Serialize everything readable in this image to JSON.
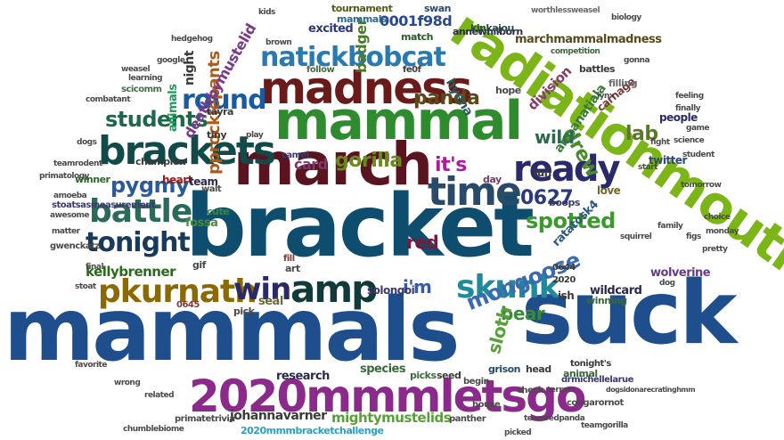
{
  "cloud": {
    "words": [
      {
        "text": "mammals",
        "color": "#1f4e8c"
      },
      {
        "text": "suck",
        "color": "#1f4e8c"
      },
      {
        "text": "bracket",
        "color": "#0e4d6e"
      },
      {
        "text": "march",
        "color": "#5a1420"
      },
      {
        "text": "mammal",
        "color": "#2e8b2e"
      },
      {
        "text": "madness",
        "color": "#6b1a1a"
      },
      {
        "text": "radiationmouth",
        "color": "#7cb518"
      },
      {
        "text": "2020mmmletsgo",
        "color": "#8b2a8b"
      },
      {
        "text": "brackets",
        "color": "#124a4a"
      },
      {
        "text": "time",
        "color": "#2a4a6a"
      },
      {
        "text": "ready",
        "color": "#2a2a6a"
      },
      {
        "text": "amp",
        "color": "#123a3a"
      },
      {
        "text": "skunk",
        "color": "#1e8a9a"
      },
      {
        "text": "natickbobcat",
        "color": "#2a7ab0"
      },
      {
        "text": "battle",
        "color": "#2a6a5a"
      },
      {
        "text": "tonight",
        "color": "#1a3a5a"
      },
      {
        "text": "pkurnath",
        "color": "#8a6a00"
      },
      {
        "text": "win",
        "color": "#2a2a6a"
      },
      {
        "text": "round",
        "color": "#1a5aa0"
      },
      {
        "text": "students",
        "color": "#1a6a4a"
      },
      {
        "text": "pygmy",
        "color": "#2a5a9a"
      },
      {
        "text": "gorilla",
        "color": "#6a8a1a"
      },
      {
        "text": "spotted",
        "color": "#3a9a2a"
      },
      {
        "text": "mongoose",
        "color": "#3a6ab0"
      },
      {
        "text": "0627",
        "color": "#2a3a7a"
      },
      {
        "text": "it's",
        "color": "#b01aa0"
      },
      {
        "text": "card",
        "color": "#7a3a6a"
      },
      {
        "text": "bear",
        "color": "#3a8a3a"
      },
      {
        "text": "sloth",
        "color": "#5aa03a"
      },
      {
        "text": "panda",
        "color": "#5a4a1a"
      },
      {
        "text": "lab",
        "color": "#5a7a2a"
      },
      {
        "text": "drew",
        "color": "#4a8a2a"
      },
      {
        "text": "wild",
        "color": "#2a6a4a"
      },
      {
        "text": "kellybrenner",
        "color": "#2a6a1a"
      },
      {
        "text": "pprocklepants",
        "color": "#b05a1a"
      },
      {
        "text": "deathbymustelid",
        "color": "#7a3a8a"
      },
      {
        "text": "red",
        "color": "#7a1a3a"
      },
      {
        "text": "i'm",
        "color": "#3a5aa0"
      },
      {
        "text": "mightymustelids",
        "color": "#5aa03a"
      },
      {
        "text": "johannavarner",
        "color": "#3a3a3a"
      },
      {
        "text": "2020mmmbracketchallenge",
        "color": "#2aa0c0"
      },
      {
        "text": "marchmammalmadness",
        "color": "#5a4a1a"
      },
      {
        "text": "0001f98d",
        "color": "#2a4a8a"
      },
      {
        "text": "badger",
        "color": "#4a7a2a"
      },
      {
        "text": "annewhilborn",
        "color": "#2a2a4a"
      },
      {
        "text": "division",
        "color": "#8a3a6a"
      },
      {
        "text": "hyena",
        "color": "#2a5a5a"
      },
      {
        "text": "excited",
        "color": "#2a3a7a"
      },
      {
        "text": "night",
        "color": "#3a3a3a"
      },
      {
        "text": "animals",
        "color": "#1a9a5a"
      },
      {
        "text": "am_anatiala",
        "color": "#3a7a3a"
      },
      {
        "text": "heart",
        "color": "#9a1a1a"
      },
      {
        "text": "team",
        "color": "#2a2a4a"
      },
      {
        "text": "fossa",
        "color": "#4a8a3a"
      },
      {
        "text": "ratatosk4",
        "color": "#2a5a7a"
      },
      {
        "text": "seal",
        "color": "#6a6a3a"
      },
      {
        "text": "solongoi",
        "color": "#3a3a6a"
      },
      {
        "text": "species",
        "color": "#3a6a3a"
      },
      {
        "text": "research",
        "color": "#2a2a4a"
      },
      {
        "text": "wildcard",
        "color": "#2a2a4a"
      },
      {
        "text": "wolverine",
        "color": "#6a3a8a"
      },
      {
        "text": "twitter",
        "color": "#2a4a7a"
      },
      {
        "text": "love",
        "color": "#6a6a2a"
      },
      {
        "text": "fun",
        "color": "#3a3a3a"
      },
      {
        "text": "carnage",
        "color": "#7a3a3a"
      },
      {
        "text": "people",
        "color": "#2a2a6a"
      },
      {
        "text": "filling",
        "color": "#6a6a6a"
      },
      {
        "text": "battles",
        "color": "#3a3a3a"
      },
      {
        "text": "kinkajou",
        "color": "#2a4a4a"
      },
      {
        "text": "match",
        "color": "#2a5a2a"
      },
      {
        "text": "tournament",
        "color": "#5a5a1a"
      },
      {
        "text": "mammals",
        "color": "#2a6a8a"
      },
      {
        "text": "swan",
        "color": "#2a4a6a"
      },
      {
        "text": "worthlessweasel",
        "color": "#6a6a6a"
      },
      {
        "text": "competition",
        "color": "#3a6a3a"
      },
      {
        "text": "boops",
        "color": "#3a3a6a"
      },
      {
        "text": "winner",
        "color": "#2a6a2a"
      },
      {
        "text": "champion",
        "color": "#3a3a3a"
      },
      {
        "text": "tiny",
        "color": "#3a3a3a"
      },
      {
        "text": "tayra",
        "color": "#3a3a3a"
      },
      {
        "text": "gif",
        "color": "#4a4a4a"
      },
      {
        "text": "art",
        "color": "#4a4a4a"
      },
      {
        "text": "cute",
        "color": "#3a8a3a"
      },
      {
        "text": "pick",
        "color": "#4a4a4a"
      },
      {
        "text": "seed",
        "color": "#3a3a3a"
      },
      {
        "text": "picks",
        "color": "#3a6a3a"
      },
      {
        "text": "head",
        "color": "#3a3a3a"
      },
      {
        "text": "grison",
        "color": "#2a4a6a"
      },
      {
        "text": "begin",
        "color": "#4a4a4a"
      },
      {
        "text": "animal",
        "color": "#3a6a3a"
      },
      {
        "text": "tonight's",
        "color": "#3a3a3a"
      },
      {
        "text": "drmichellelarue",
        "color": "#3a3a6a"
      },
      {
        "text": "winning",
        "color": "#3a6a3a"
      },
      {
        "text": "check",
        "color": "#4a4a4a"
      },
      {
        "text": "house",
        "color": "#4a4a4a"
      },
      {
        "text": "panther",
        "color": "#4a4a4a"
      },
      {
        "text": "primatetrivia",
        "color": "#4a4a4a"
      },
      {
        "text": "cougarornot",
        "color": "#4a4a4a"
      },
      {
        "text": "ish",
        "color": "#3a3a3a"
      },
      {
        "text": "hope",
        "color": "#4a4a4a"
      },
      {
        "text": "follow",
        "color": "#4a6a4a"
      },
      {
        "text": "fe0f",
        "color": "#3a3a3a"
      },
      {
        "text": "camel",
        "color": "#3a3a6a"
      },
      {
        "text": "walt",
        "color": "#4a4a4a"
      },
      {
        "text": "stoatsasmeasurement",
        "color": "#3a3a6a"
      },
      {
        "text": "teamrodent",
        "color": "#4a4a4a"
      },
      {
        "text": "hedgehog",
        "color": "#4a4a4a"
      },
      {
        "text": "scicomm",
        "color": "#4a6a4a"
      },
      {
        "text": "combatant",
        "color": "#4a4a4a"
      },
      {
        "text": "gwenckatz",
        "color": "#4a4a4a"
      },
      {
        "text": "brown",
        "color": "#4a4a4a"
      },
      {
        "text": "chumblebiome",
        "color": "#4a4a4a"
      },
      {
        "text": "day",
        "color": "#7a3a6a"
      },
      {
        "text": "0644",
        "color": "#3a3a3a"
      },
      {
        "text": "0645",
        "color": "#7a3a3a"
      },
      {
        "text": "fill",
        "color": "#7a3a3a"
      },
      {
        "text": "2020",
        "color": "#3a3a3a"
      },
      {
        "text": "teamredpanda",
        "color": "#4a4a4a"
      },
      {
        "text": "play",
        "color": "#4a4a4a"
      },
      {
        "text": "dogs",
        "color": "#4a4a4a"
      },
      {
        "text": "final",
        "color": "#4a4a4a"
      },
      {
        "text": "stoat",
        "color": "#4a4a4a"
      },
      {
        "text": "amoeba",
        "color": "#4a4a4a"
      },
      {
        "text": "awesome",
        "color": "#4a4a4a"
      },
      {
        "text": "weasel",
        "color": "#4a4a4a"
      },
      {
        "text": "learning",
        "color": "#4a4a4a"
      },
      {
        "text": "biology",
        "color": "#4a4a4a"
      },
      {
        "text": "squirrel",
        "color": "#4a4a4a"
      },
      {
        "text": "family",
        "color": "#4a4a4a"
      },
      {
        "text": "science",
        "color": "#4a4a4a"
      },
      {
        "text": "tomorrow",
        "color": "#4a4a4a"
      },
      {
        "text": "start",
        "color": "#4a4a4a"
      },
      {
        "text": "gonna",
        "color": "#4a4a4a"
      },
      {
        "text": "finally",
        "color": "#4a4a4a"
      },
      {
        "text": "feeling",
        "color": "#4a4a4a"
      },
      {
        "text": "google",
        "color": "#4a4a4a"
      },
      {
        "text": "favorite",
        "color": "#4a4a4a"
      },
      {
        "text": "related",
        "color": "#4a4a4a"
      },
      {
        "text": "wrong",
        "color": "#4a4a4a"
      },
      {
        "text": "picked",
        "color": "#4a4a4a"
      },
      {
        "text": "student",
        "color": "#4a4a4a"
      },
      {
        "text": "monday",
        "color": "#4a4a4a"
      },
      {
        "text": "choice",
        "color": "#4a4a4a"
      },
      {
        "text": "pretty",
        "color": "#4a4a4a"
      },
      {
        "text": "figs",
        "color": "#4a4a4a"
      },
      {
        "text": "dog",
        "color": "#4a4a4a"
      },
      {
        "text": "fight",
        "color": "#4a4a4a"
      },
      {
        "text": "game",
        "color": "#4a4a4a"
      },
      {
        "text": "lynx",
        "color": "#4a4a4a"
      },
      {
        "text": "kids",
        "color": "#4a4a4a"
      },
      {
        "text": "primatology",
        "color": "#4a4a4a"
      },
      {
        "text": "matter",
        "color": "#4a4a4a"
      },
      {
        "text": "teamgorilla",
        "color": "#4a4a4a"
      },
      {
        "text": "terrors",
        "color": "#4a4a4a"
      },
      {
        "text": "dogsidonarecratinghmm",
        "color": "#4a4a4a"
      }
    ]
  }
}
